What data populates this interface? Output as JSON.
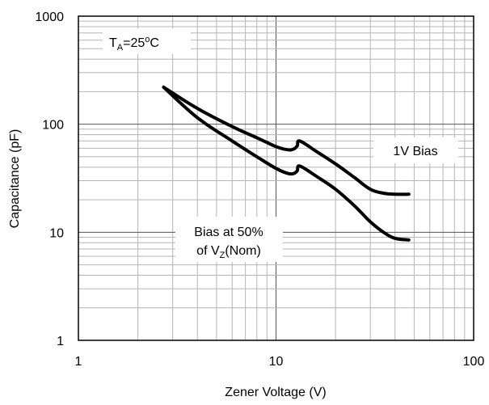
{
  "chart_data": {
    "type": "line",
    "x_scale": "log",
    "y_scale": "log",
    "xlabel": "Zener Voltage (V)",
    "ylabel": "Capacitance (pF)",
    "xlim": [
      1,
      100
    ],
    "ylim": [
      1,
      1000
    ],
    "x_ticks": [
      "1",
      "10",
      "100"
    ],
    "y_ticks": [
      "1",
      "10",
      "100",
      "1000"
    ],
    "grid": true,
    "series": [
      {
        "name": "1V Bias",
        "x": [
          2.7,
          4,
          6,
          8,
          10,
          11.5,
          12.3,
          12.8,
          13.2,
          16,
          20,
          25,
          30,
          35,
          40,
          47
        ],
        "y": [
          220,
          140,
          95,
          75,
          62,
          58,
          59,
          63,
          70,
          56,
          43,
          32,
          25,
          23,
          22.5,
          22.5
        ]
      },
      {
        "name": "Bias at 50% of VZ(Nom)",
        "x": [
          2.7,
          4,
          6,
          8,
          10,
          11.5,
          12.3,
          12.8,
          13.2,
          16,
          20,
          25,
          30,
          35,
          40,
          47
        ],
        "y": [
          220,
          115,
          70,
          50,
          39,
          35,
          35,
          37,
          41,
          33,
          25,
          17.5,
          12.5,
          10,
          8.8,
          8.5
        ]
      }
    ],
    "annotations": {
      "temp_main": "T",
      "temp_sub": "A",
      "temp_rest": "=25",
      "temp_sup": "o",
      "temp_unit": "C",
      "bias1": "1V Bias",
      "bias2_line1": "Bias at 50%",
      "bias2_prefix": "of V",
      "bias2_sub": "Z",
      "bias2_suffix": "(Nom)"
    }
  }
}
